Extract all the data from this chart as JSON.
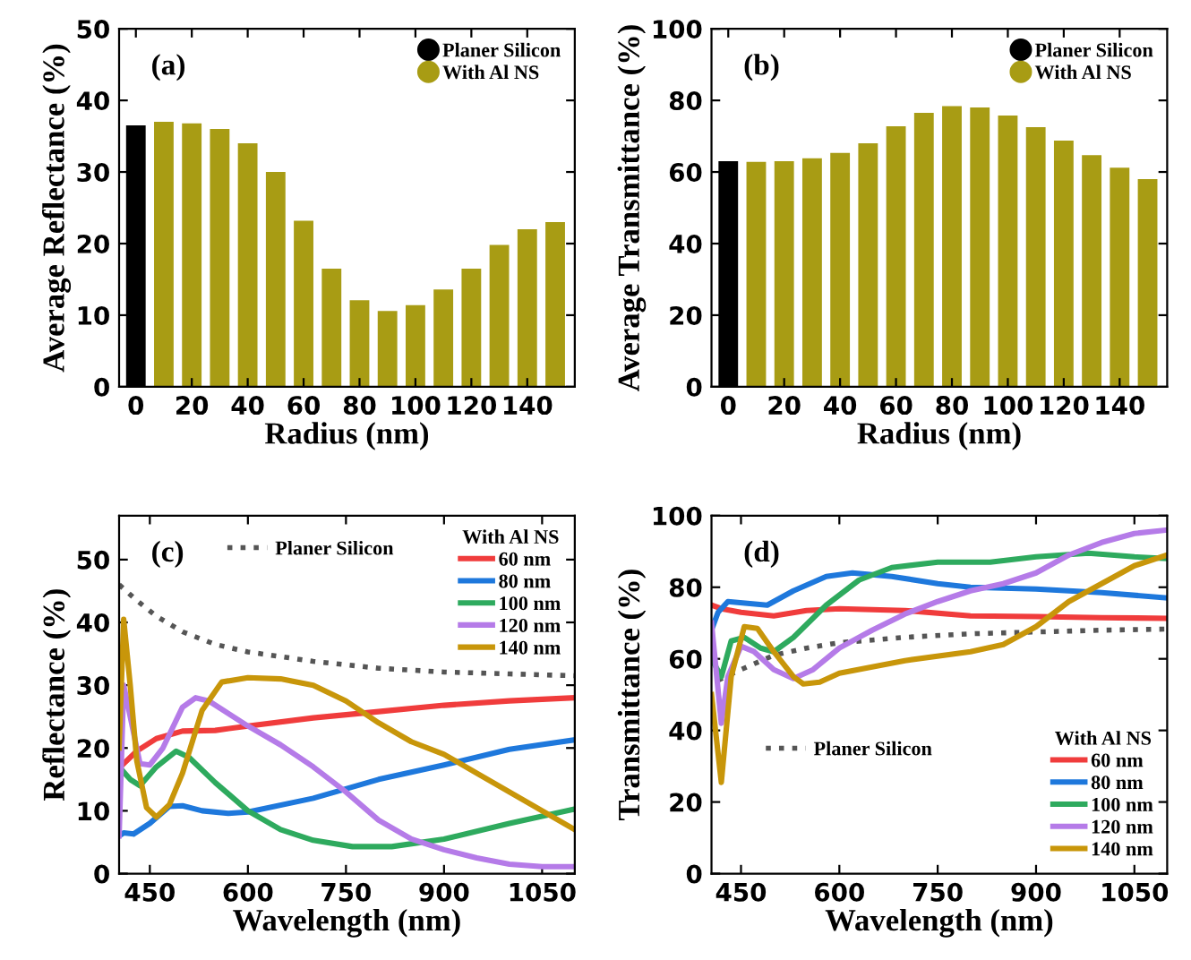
{
  "chart_data": [
    {
      "type": "bar",
      "xlabel": "Radius (nm)",
      "ylabel": "Average Reflectance (%)",
      "annotations": [
        "(a)"
      ],
      "xlim": [
        -6,
        157
      ],
      "xticks": [
        0,
        20,
        40,
        60,
        80,
        100,
        120,
        140
      ],
      "ylim": [
        0,
        50
      ],
      "yticks": [
        0,
        10,
        20,
        30,
        40,
        50
      ],
      "legend": "top right",
      "grid": false,
      "series": [
        {
          "name": "Planer Silicon",
          "color": "#000000",
          "x": [
            0
          ],
          "values": [
            36.5
          ]
        },
        {
          "name": "With Al NS",
          "color": "#a89c14",
          "x": [
            10,
            20,
            30,
            40,
            50,
            60,
            70,
            80,
            90,
            100,
            110,
            120,
            130,
            140,
            150
          ],
          "values": [
            37,
            36.8,
            36,
            34,
            30,
            23.2,
            16.5,
            12.1,
            10.6,
            11.4,
            13.6,
            16.5,
            19.8,
            22,
            23
          ]
        }
      ]
    },
    {
      "type": "bar",
      "xlabel": "Radius (nm)",
      "ylabel": "Average Transmittance (%)",
      "annotations": [
        "(b)"
      ],
      "xlim": [
        -6,
        157
      ],
      "xticks": [
        0,
        20,
        40,
        60,
        80,
        100,
        120,
        140
      ],
      "ylim": [
        0,
        100
      ],
      "yticks": [
        0,
        20,
        40,
        60,
        80,
        100
      ],
      "legend": "top right",
      "grid": false,
      "series": [
        {
          "name": "Planer Silicon",
          "color": "#000000",
          "x": [
            0
          ],
          "values": [
            63
          ]
        },
        {
          "name": "With Al NS",
          "color": "#a89c14",
          "x": [
            10,
            20,
            30,
            40,
            50,
            60,
            70,
            80,
            90,
            100,
            110,
            120,
            130,
            140,
            150
          ],
          "values": [
            62.8,
            63,
            63.8,
            65.3,
            68,
            72.8,
            76.5,
            78.4,
            78,
            75.8,
            72.5,
            68.8,
            64.7,
            61.2,
            58
          ]
        }
      ]
    },
    {
      "type": "line",
      "xlabel": "Wavelength (nm)",
      "ylabel": "Reflectance (%)",
      "annotations": [
        "(c)"
      ],
      "xlim": [
        403,
        1100
      ],
      "xticks": [
        450,
        600,
        750,
        900,
        1050
      ],
      "ylim": [
        0,
        57
      ],
      "yticks": [
        0,
        10,
        20,
        30,
        40,
        50
      ],
      "legend": "top right",
      "legend_title": "With Al NS",
      "grid": false,
      "series": [
        {
          "name": "Planer Silicon",
          "color": "#555555",
          "line_style": "dotted",
          "x": [
            403,
            430,
            460,
            500,
            550,
            600,
            700,
            800,
            900,
            1000,
            1100
          ],
          "values": [
            46,
            43.5,
            41,
            38.5,
            36.5,
            35.3,
            33.8,
            32.7,
            32.1,
            31.8,
            31.5
          ]
        },
        {
          "name": "60 nm",
          "color": "#f03c3c",
          "x": [
            405,
            430,
            460,
            500,
            550,
            600,
            700,
            800,
            900,
            1000,
            1100
          ],
          "values": [
            17,
            19.5,
            21.5,
            22.7,
            22.8,
            23.5,
            24.8,
            25.8,
            26.8,
            27.5,
            28
          ]
        },
        {
          "name": "80 nm",
          "color": "#1e78dc",
          "x": [
            403,
            410,
            425,
            450,
            480,
            500,
            530,
            570,
            600,
            700,
            800,
            900,
            1000,
            1100
          ],
          "values": [
            6,
            6.5,
            6.3,
            8,
            10.7,
            10.8,
            10,
            9.6,
            9.8,
            12,
            15,
            17.3,
            19.8,
            21.3
          ]
        },
        {
          "name": "100 nm",
          "color": "#2eaa5e",
          "x": [
            403,
            420,
            435,
            460,
            490,
            510,
            550,
            600,
            650,
            700,
            760,
            820,
            900,
            1000,
            1100
          ],
          "values": [
            17,
            15,
            14,
            17,
            19.5,
            18.5,
            14.5,
            10,
            7,
            5.3,
            4.3,
            4.3,
            5.5,
            8,
            10.3
          ]
        },
        {
          "name": "120 nm",
          "color": "#b57be8",
          "x": [
            403,
            410,
            420,
            435,
            450,
            470,
            500,
            520,
            540,
            600,
            650,
            700,
            750,
            800,
            850,
            900,
            950,
            1000,
            1050,
            1100
          ],
          "values": [
            6,
            30,
            25,
            17.5,
            17.3,
            20,
            26.5,
            28,
            27.5,
            23.5,
            20.5,
            17,
            13,
            8.5,
            5.5,
            3.8,
            2.5,
            1.5,
            1.1,
            1.1
          ]
        },
        {
          "name": "140 nm",
          "color": "#c8960a",
          "x": [
            403,
            410,
            420,
            430,
            445,
            460,
            480,
            500,
            530,
            560,
            600,
            650,
            700,
            750,
            800,
            850,
            900,
            950,
            1000,
            1050,
            1100
          ],
          "values": [
            20,
            40.5,
            30,
            18,
            10.5,
            9,
            11,
            16,
            26,
            30.5,
            31.2,
            31,
            30,
            27.5,
            24,
            21,
            19,
            16,
            13,
            10,
            7
          ]
        }
      ]
    },
    {
      "type": "line",
      "xlabel": "Wavelength (nm)",
      "ylabel": "Transmittance (%)",
      "annotations": [
        "(d)"
      ],
      "xlim": [
        405,
        1100
      ],
      "xticks": [
        450,
        600,
        750,
        900,
        1050
      ],
      "ylim": [
        0,
        100
      ],
      "yticks": [
        0,
        20,
        40,
        60,
        80,
        100
      ],
      "legend": "bottom right",
      "legend_title": "With Al NS",
      "grid": false,
      "series": [
        {
          "name": "Planer Silicon",
          "color": "#555555",
          "line_style": "dotted",
          "x": [
            415,
            450,
            500,
            550,
            600,
            700,
            800,
            900,
            1000,
            1100
          ],
          "values": [
            54,
            57,
            61,
            63,
            64.5,
            66,
            67,
            67.5,
            68,
            68.3
          ]
        },
        {
          "name": "60 nm",
          "color": "#f03c3c",
          "x": [
            405,
            420,
            450,
            500,
            550,
            600,
            700,
            800,
            900,
            1000,
            1100
          ],
          "values": [
            75,
            74,
            73,
            72,
            73.5,
            74,
            73.5,
            72,
            71.8,
            71.5,
            71.3
          ]
        },
        {
          "name": "80 nm",
          "color": "#1e78dc",
          "x": [
            405,
            415,
            430,
            460,
            490,
            530,
            580,
            620,
            680,
            750,
            800,
            900,
            1000,
            1100
          ],
          "values": [
            68,
            73,
            76,
            75.5,
            75,
            79,
            83,
            84,
            83,
            81,
            80,
            79.5,
            78.5,
            77
          ]
        },
        {
          "name": "100 nm",
          "color": "#2eaa5e",
          "x": [
            405,
            420,
            435,
            455,
            480,
            500,
            530,
            580,
            630,
            680,
            750,
            830,
            900,
            980,
            1050,
            1100
          ],
          "values": [
            60,
            55,
            65,
            66,
            63,
            62,
            66,
            75,
            82,
            85.5,
            87,
            87,
            88.5,
            89.5,
            88.5,
            88
          ]
        },
        {
          "name": "120 nm",
          "color": "#b57be8",
          "x": [
            405,
            420,
            430,
            450,
            470,
            500,
            530,
            560,
            600,
            650,
            700,
            750,
            800,
            850,
            900,
            950,
            1000,
            1050,
            1100
          ],
          "values": [
            70,
            42,
            55,
            63.5,
            62,
            57,
            54.5,
            57,
            63,
            68,
            72.5,
            76,
            79,
            81,
            84,
            89,
            92.5,
            95,
            96
          ]
        },
        {
          "name": "140 nm",
          "color": "#c8960a",
          "x": [
            405,
            420,
            435,
            455,
            475,
            500,
            530,
            545,
            570,
            600,
            700,
            800,
            850,
            900,
            950,
            1000,
            1050,
            1100
          ],
          "values": [
            50,
            25.5,
            55,
            69,
            68.5,
            62,
            55,
            53,
            53.5,
            56,
            59.5,
            62,
            64,
            69,
            76,
            81,
            86,
            89
          ]
        }
      ]
    }
  ]
}
